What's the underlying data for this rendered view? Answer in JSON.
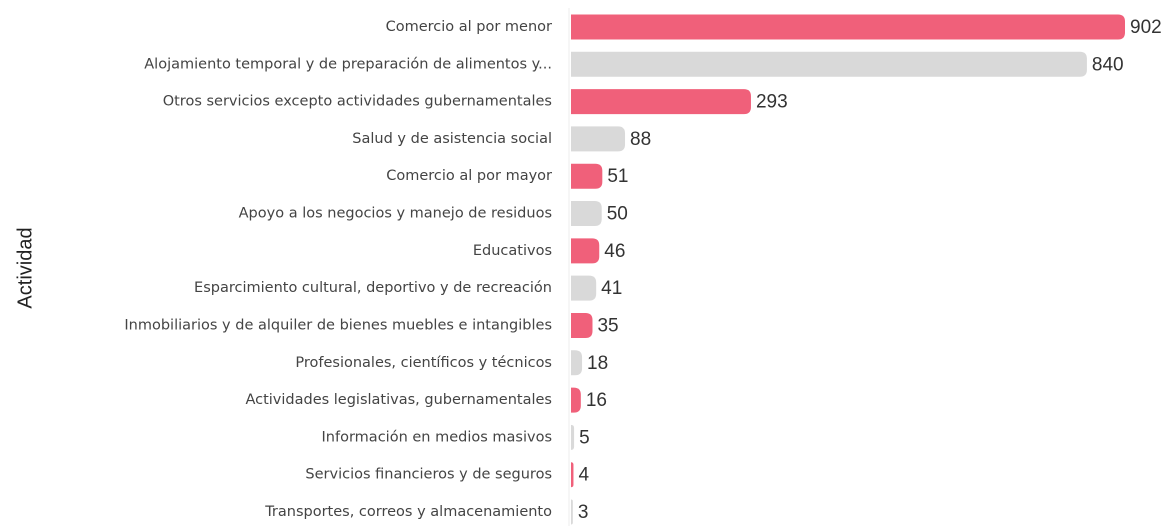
{
  "chart_data": {
    "type": "bar",
    "orientation": "horizontal",
    "y_label": "Actividad",
    "categories": [
      "Comercio al por menor",
      "Alojamiento temporal y de preparación de alimentos y...",
      "Otros servicios excepto actividades gubernamentales",
      "Salud y de asistencia social",
      "Comercio al por mayor",
      "Apoyo a los negocios y manejo de residuos",
      "Educativos",
      "Esparcimiento cultural, deportivo y de recreación",
      "Inmobiliarios y de alquiler de bienes muebles e intangibles",
      "Profesionales, científicos y técnicos",
      "Actividades legislativas, gubernamentales",
      "Información en medios masivos",
      "Servicios financieros y de seguros",
      "Transportes, correos y almacenamiento"
    ],
    "values": [
      902,
      840,
      293,
      88,
      51,
      50,
      46,
      41,
      35,
      18,
      16,
      5,
      4,
      3
    ],
    "colors": [
      "#f0607a",
      "#d9d9d9",
      "#f0607a",
      "#d9d9d9",
      "#f0607a",
      "#d9d9d9",
      "#f0607a",
      "#d9d9d9",
      "#f0607a",
      "#d9d9d9",
      "#f0607a",
      "#d9d9d9",
      "#f0607a",
      "#d9d9d9"
    ]
  }
}
